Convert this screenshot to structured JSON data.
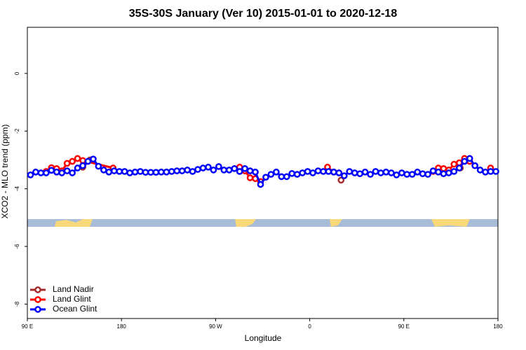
{
  "chart_data": {
    "type": "line",
    "title": "35S-30S January (Ver 10)   2015-01-01 to 2020-12-18",
    "x_label": "Longitude",
    "y_label": "XCO2 - MLO trend (ppm)",
    "xlim": [
      90,
      540
    ],
    "ylim": [
      -8.5,
      1.6
    ],
    "xticks": [
      {
        "value": 90,
        "label": "90 E"
      },
      {
        "value": 180,
        "label": "180"
      },
      {
        "value": 270,
        "label": "90 W"
      },
      {
        "value": 360,
        "label": "0"
      },
      {
        "value": 450,
        "label": "90 E"
      },
      {
        "value": 540,
        "label": "180"
      }
    ],
    "yticks": [
      0,
      -2,
      -4,
      -6,
      -8
    ],
    "legend": "bottom-left",
    "series": [
      {
        "name": "Land Nadir",
        "color": "#a52a2a",
        "x": [
          143,
          150,
          null,
          390,
          null,
          504,
          508
        ],
        "values": [
          -3.25,
          -3.0,
          null,
          -3.7,
          null,
          -3.28,
          -2.98
        ]
      },
      {
        "name": "Land Glint",
        "color": "#ff0000",
        "x": [
          108,
          113,
          118,
          123,
          128,
          133,
          138,
          143,
          172,
          null,
          293,
          298,
          303,
          308,
          313,
          null,
          377,
          383,
          388,
          null,
          478,
          483,
          488,
          493,
          498,
          503,
          508,
          513,
          null,
          533
        ],
        "values": [
          -3.4,
          -3.27,
          -3.3,
          -3.38,
          -3.12,
          -3.05,
          -2.95,
          -3.02,
          -3.28,
          null,
          -3.25,
          -3.38,
          -3.62,
          -3.65,
          -3.75,
          null,
          -3.25,
          -3.42,
          -3.45,
          null,
          -3.4,
          -3.28,
          -3.3,
          -3.35,
          -3.15,
          -3.1,
          -2.95,
          -3.05,
          null,
          -3.28
        ]
      },
      {
        "name": "Ocean Glint",
        "color": "#0000ff",
        "x": [
          93,
          98,
          103,
          108,
          113,
          118,
          123,
          128,
          133,
          138,
          143,
          148,
          153,
          158,
          163,
          168,
          173,
          178,
          183,
          188,
          193,
          198,
          203,
          208,
          213,
          218,
          223,
          228,
          233,
          238,
          243,
          248,
          253,
          258,
          263,
          268,
          273,
          278,
          283,
          288,
          293,
          298,
          303,
          308,
          313,
          318,
          323,
          328,
          333,
          338,
          343,
          348,
          353,
          358,
          363,
          368,
          373,
          378,
          383,
          388,
          393,
          398,
          403,
          408,
          413,
          418,
          423,
          428,
          433,
          438,
          443,
          448,
          453,
          458,
          463,
          468,
          473,
          478,
          483,
          488,
          493,
          498,
          503,
          508,
          513,
          518,
          523,
          528,
          533,
          538
        ],
        "values": [
          -3.52,
          -3.42,
          -3.45,
          -3.45,
          -3.36,
          -3.42,
          -3.45,
          -3.38,
          -3.45,
          -3.28,
          -3.2,
          -3.05,
          -2.97,
          -3.22,
          -3.35,
          -3.42,
          -3.38,
          -3.4,
          -3.4,
          -3.45,
          -3.42,
          -3.4,
          -3.43,
          -3.43,
          -3.43,
          -3.42,
          -3.42,
          -3.4,
          -3.38,
          -3.38,
          -3.35,
          -3.4,
          -3.33,
          -3.28,
          -3.25,
          -3.35,
          -3.23,
          -3.35,
          -3.35,
          -3.3,
          -3.4,
          -3.3,
          -3.38,
          -3.42,
          -3.85,
          -3.6,
          -3.5,
          -3.42,
          -3.58,
          -3.58,
          -3.47,
          -3.5,
          -3.45,
          -3.4,
          -3.45,
          -3.38,
          -3.4,
          -3.4,
          -3.42,
          -3.45,
          -3.55,
          -3.4,
          -3.45,
          -3.48,
          -3.42,
          -3.5,
          -3.4,
          -3.45,
          -3.42,
          -3.45,
          -3.52,
          -3.45,
          -3.5,
          -3.5,
          -3.42,
          -3.48,
          -3.5,
          -3.38,
          -3.42,
          -3.48,
          -3.45,
          -3.4,
          -3.28,
          -3.05,
          -2.95,
          -3.2,
          -3.35,
          -3.42,
          -3.4,
          -3.4
        ]
      }
    ]
  }
}
